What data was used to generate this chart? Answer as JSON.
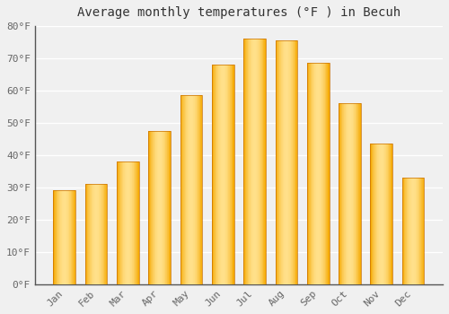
{
  "title": "Average monthly temperatures (°F ) in Becuh",
  "months": [
    "Jan",
    "Feb",
    "Mar",
    "Apr",
    "May",
    "Jun",
    "Jul",
    "Aug",
    "Sep",
    "Oct",
    "Nov",
    "Dec"
  ],
  "values": [
    29,
    31,
    38,
    47.5,
    58.5,
    68,
    76,
    75.5,
    68.5,
    56,
    43.5,
    33
  ],
  "bar_color_center": "#FFE08A",
  "bar_color_edge": "#F5A800",
  "ylim": [
    0,
    80
  ],
  "yticks": [
    0,
    10,
    20,
    30,
    40,
    50,
    60,
    70,
    80
  ],
  "ytick_labels": [
    "0°F",
    "10°F",
    "20°F",
    "30°F",
    "40°F",
    "50°F",
    "60°F",
    "70°F",
    "80°F"
  ],
  "background_color": "#f0f0f0",
  "plot_bg_color": "#f0f0f0",
  "grid_color": "#ffffff",
  "title_fontsize": 10,
  "tick_fontsize": 8,
  "font_color": "#666666",
  "spine_color": "#555555"
}
